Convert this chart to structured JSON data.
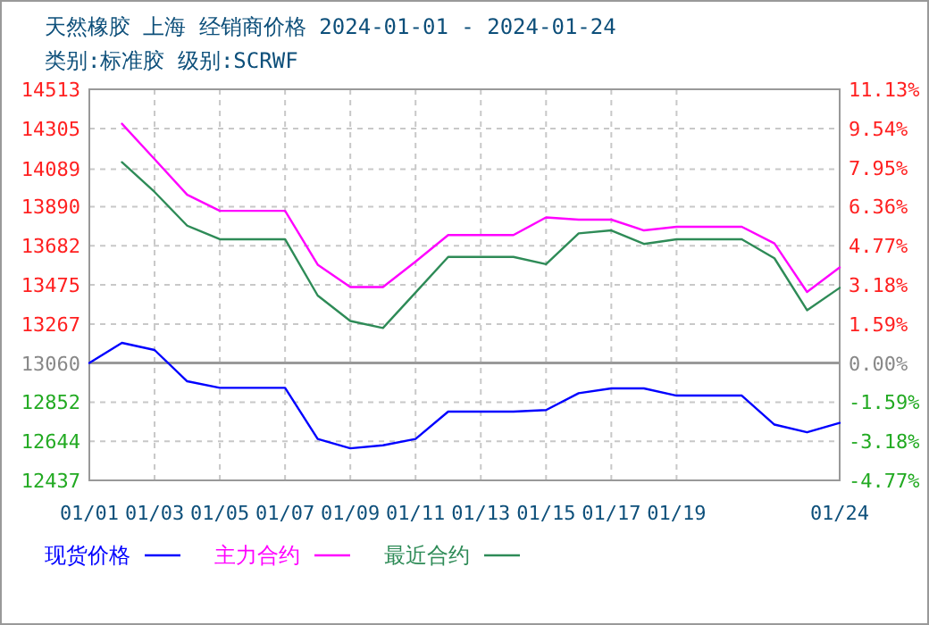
{
  "chart_data": {
    "type": "line",
    "title": "天然橡胶 上海 经销商价格 2024-01-01 - 2024-01-24",
    "subtitle": "类别:标准胶 级别:SCRWF",
    "x": [
      "2024-01-01",
      "2024-01-02",
      "2024-01-03",
      "2024-01-04",
      "2024-01-05",
      "2024-01-06",
      "2024-01-07",
      "2024-01-08",
      "2024-01-09",
      "2024-01-10",
      "2024-01-11",
      "2024-01-12",
      "2024-01-13",
      "2024-01-14",
      "2024-01-15",
      "2024-01-16",
      "2024-01-17",
      "2024-01-18",
      "2024-01-19",
      "2024-01-20",
      "2024-01-21",
      "2024-01-22",
      "2024-01-23",
      "2024-01-24"
    ],
    "series": [
      {
        "name": "现货价格",
        "color": "#0000ff",
        "values": [
          13060,
          13167,
          13129,
          12963,
          12928,
          12928,
          12928,
          12657,
          12607,
          12623,
          12657,
          12802,
          12802,
          12802,
          12810,
          12900,
          12925,
          12925,
          12887,
          12887,
          12887,
          12733,
          12692,
          12742
        ]
      },
      {
        "name": "主力合约",
        "color": "#ff00ff",
        "values": [
          null,
          14330,
          14142,
          13953,
          13868,
          13868,
          13868,
          13582,
          13463,
          13463,
          13598,
          13739,
          13739,
          13739,
          13833,
          13821,
          13821,
          13764,
          13783,
          13783,
          13783,
          13695,
          13437,
          13567
        ]
      },
      {
        "name": "最近合约",
        "color": "#2e8b57",
        "values": [
          null,
          14126,
          13968,
          13789,
          13717,
          13717,
          13717,
          13418,
          13283,
          13246,
          13434,
          13623,
          13623,
          13623,
          13585,
          13748,
          13764,
          13692,
          13717,
          13717,
          13717,
          13616,
          13340,
          13459
        ]
      }
    ],
    "xlim": [
      "2024-01-01",
      "2024-01-24"
    ],
    "xticks": [
      {
        "value": "2024-01-01",
        "label": "01/01"
      },
      {
        "value": "2024-01-03",
        "label": "01/03"
      },
      {
        "value": "2024-01-05",
        "label": "01/05"
      },
      {
        "value": "2024-01-07",
        "label": "01/07"
      },
      {
        "value": "2024-01-09",
        "label": "01/09"
      },
      {
        "value": "2024-01-11",
        "label": "01/11"
      },
      {
        "value": "2024-01-13",
        "label": "01/13"
      },
      {
        "value": "2024-01-15",
        "label": "01/15"
      },
      {
        "value": "2024-01-17",
        "label": "01/17"
      },
      {
        "value": "2024-01-19",
        "label": "01/19"
      },
      {
        "value": "2024-01-24",
        "label": "01/24"
      }
    ],
    "ylim": [
      12437,
      14513
    ],
    "yticks": [
      14513,
      14305,
      14089,
      13890,
      13682,
      13475,
      13267,
      13060,
      12852,
      12644,
      12437
    ],
    "y2lim": [
      -4.77,
      11.13
    ],
    "y2ticks": [
      {
        "value": 11.13,
        "label": "11.13%"
      },
      {
        "value": 9.54,
        "label": "9.54%"
      },
      {
        "value": 7.95,
        "label": "7.95%"
      },
      {
        "value": 6.36,
        "label": "6.36%"
      },
      {
        "value": 4.77,
        "label": "4.77%"
      },
      {
        "value": 3.18,
        "label": "3.18%"
      },
      {
        "value": 1.59,
        "label": "1.59%"
      },
      {
        "value": 0,
        "label": "0.00%"
      },
      {
        "value": -1.59,
        "label": "-1.59%"
      },
      {
        "value": -3.18,
        "label": "-3.18%"
      },
      {
        "value": -4.77,
        "label": "-4.77%"
      }
    ],
    "ref_lines": [
      {
        "axis": "y2",
        "value": 0,
        "color": "#999999"
      }
    ],
    "grid": true,
    "legend": "bottom",
    "line_style": "solid",
    "marker": "none"
  }
}
